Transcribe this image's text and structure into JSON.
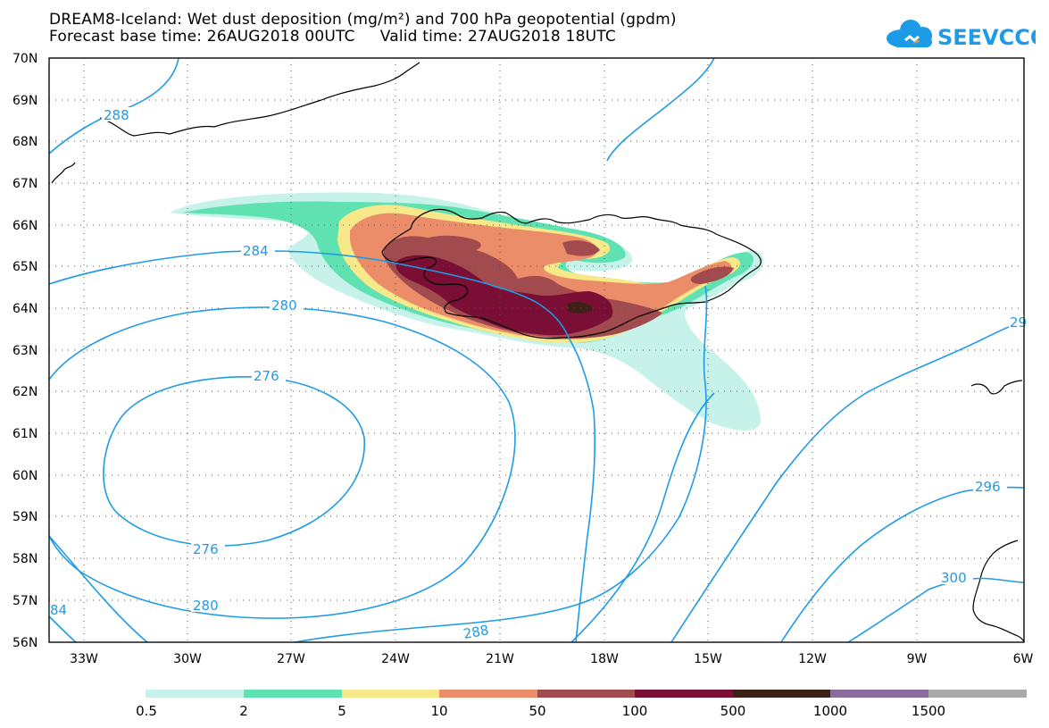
{
  "header": {
    "line1": "DREAM8-Iceland: Wet dust deposition (mg/m²) and 700 hPa geopotential (gpdm)",
    "line2": "Forecast base time: 26AUG2018 00UTC     Valid time: 27AUG2018 18UTC",
    "logo_text": "SEEVCCC",
    "logo_color": "#1e9be6"
  },
  "map": {
    "lat_labels": [
      "70N",
      "69N",
      "68N",
      "67N",
      "66N",
      "65N",
      "64N",
      "63N",
      "62N",
      "61N",
      "60N",
      "59N",
      "58N",
      "57N",
      "56N"
    ],
    "lon_labels": [
      "33W",
      "30W",
      "27W",
      "24W",
      "21W",
      "18W",
      "15W",
      "12W",
      "9W",
      "6W"
    ],
    "contour_color": "#1e9be6",
    "contour_labels": {
      "c288_top": "288",
      "c284": "284",
      "c280_top": "280",
      "c276_top": "276",
      "c276_bot": "276",
      "c280_bot": "280",
      "c288_bot": "288",
      "c296": "296",
      "c300": "300",
      "c84_left": "84",
      "c29_right": "29"
    }
  },
  "legend": {
    "labels": [
      "0.5",
      "2",
      "5",
      "10",
      "50",
      "100",
      "500",
      "1000",
      "1500"
    ],
    "colors": [
      "#c6f2ea",
      "#5fe1b2",
      "#f7e98a",
      "#ec8d6a",
      "#a14b4e",
      "#7a0e35",
      "#3d2016",
      "#8a6c9c",
      "#a9a9a9"
    ]
  }
}
